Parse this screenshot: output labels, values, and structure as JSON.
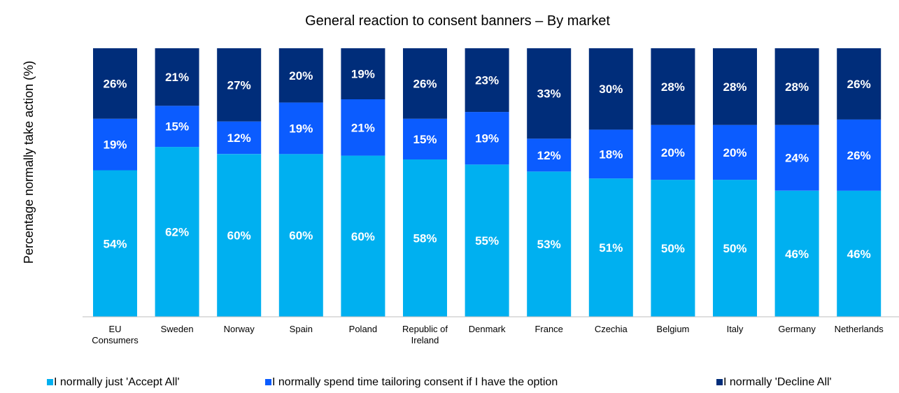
{
  "chart_data": {
    "type": "bar",
    "stacked": true,
    "title": "General reaction to consent banners – By market",
    "xlabel": "",
    "ylabel": "Percentage normally take action (%)",
    "ylim": [
      0,
      100
    ],
    "grid": false,
    "legend_position": "bottom",
    "categories": [
      [
        "EU",
        "Consumers"
      ],
      [
        "Sweden"
      ],
      [
        "Norway"
      ],
      [
        "Spain"
      ],
      [
        "Poland"
      ],
      [
        "Republic of",
        "Ireland"
      ],
      [
        "Denmark"
      ],
      [
        "France"
      ],
      [
        "Czechia"
      ],
      [
        "Belgium"
      ],
      [
        "Italy"
      ],
      [
        "Germany"
      ],
      [
        "Netherlands"
      ]
    ],
    "series": [
      {
        "name": "I normally just 'Accept All'",
        "color": "#00B0F0",
        "values": [
          54,
          62,
          60,
          60,
          60,
          58,
          55,
          53,
          51,
          50,
          50,
          46,
          46
        ],
        "labels": [
          "54%",
          "62%",
          "60%",
          "60%",
          "60%",
          "58%",
          "55%",
          "53%",
          "51%",
          "50%",
          "50%",
          "46%",
          "46%"
        ]
      },
      {
        "name": "I normally spend time tailoring consent if I have the option",
        "color": "#0B5CFF",
        "values": [
          19,
          15,
          12,
          19,
          21,
          15,
          19,
          12,
          18,
          20,
          20,
          24,
          26
        ],
        "labels": [
          "19%",
          "15%",
          "12%",
          "19%",
          "21%",
          "15%",
          "19%",
          "12%",
          "18%",
          "20%",
          "20%",
          "24%",
          "26%"
        ]
      },
      {
        "name": "I normally 'Decline All'",
        "color": "#002D7A",
        "values": [
          26,
          21,
          27,
          20,
          19,
          26,
          23,
          33,
          30,
          28,
          28,
          28,
          26
        ],
        "labels": [
          "26%",
          "21%",
          "27%",
          "20%",
          "19%",
          "26%",
          "23%",
          "33%",
          "30%",
          "28%",
          "28%",
          "28%",
          "26%"
        ]
      }
    ]
  }
}
